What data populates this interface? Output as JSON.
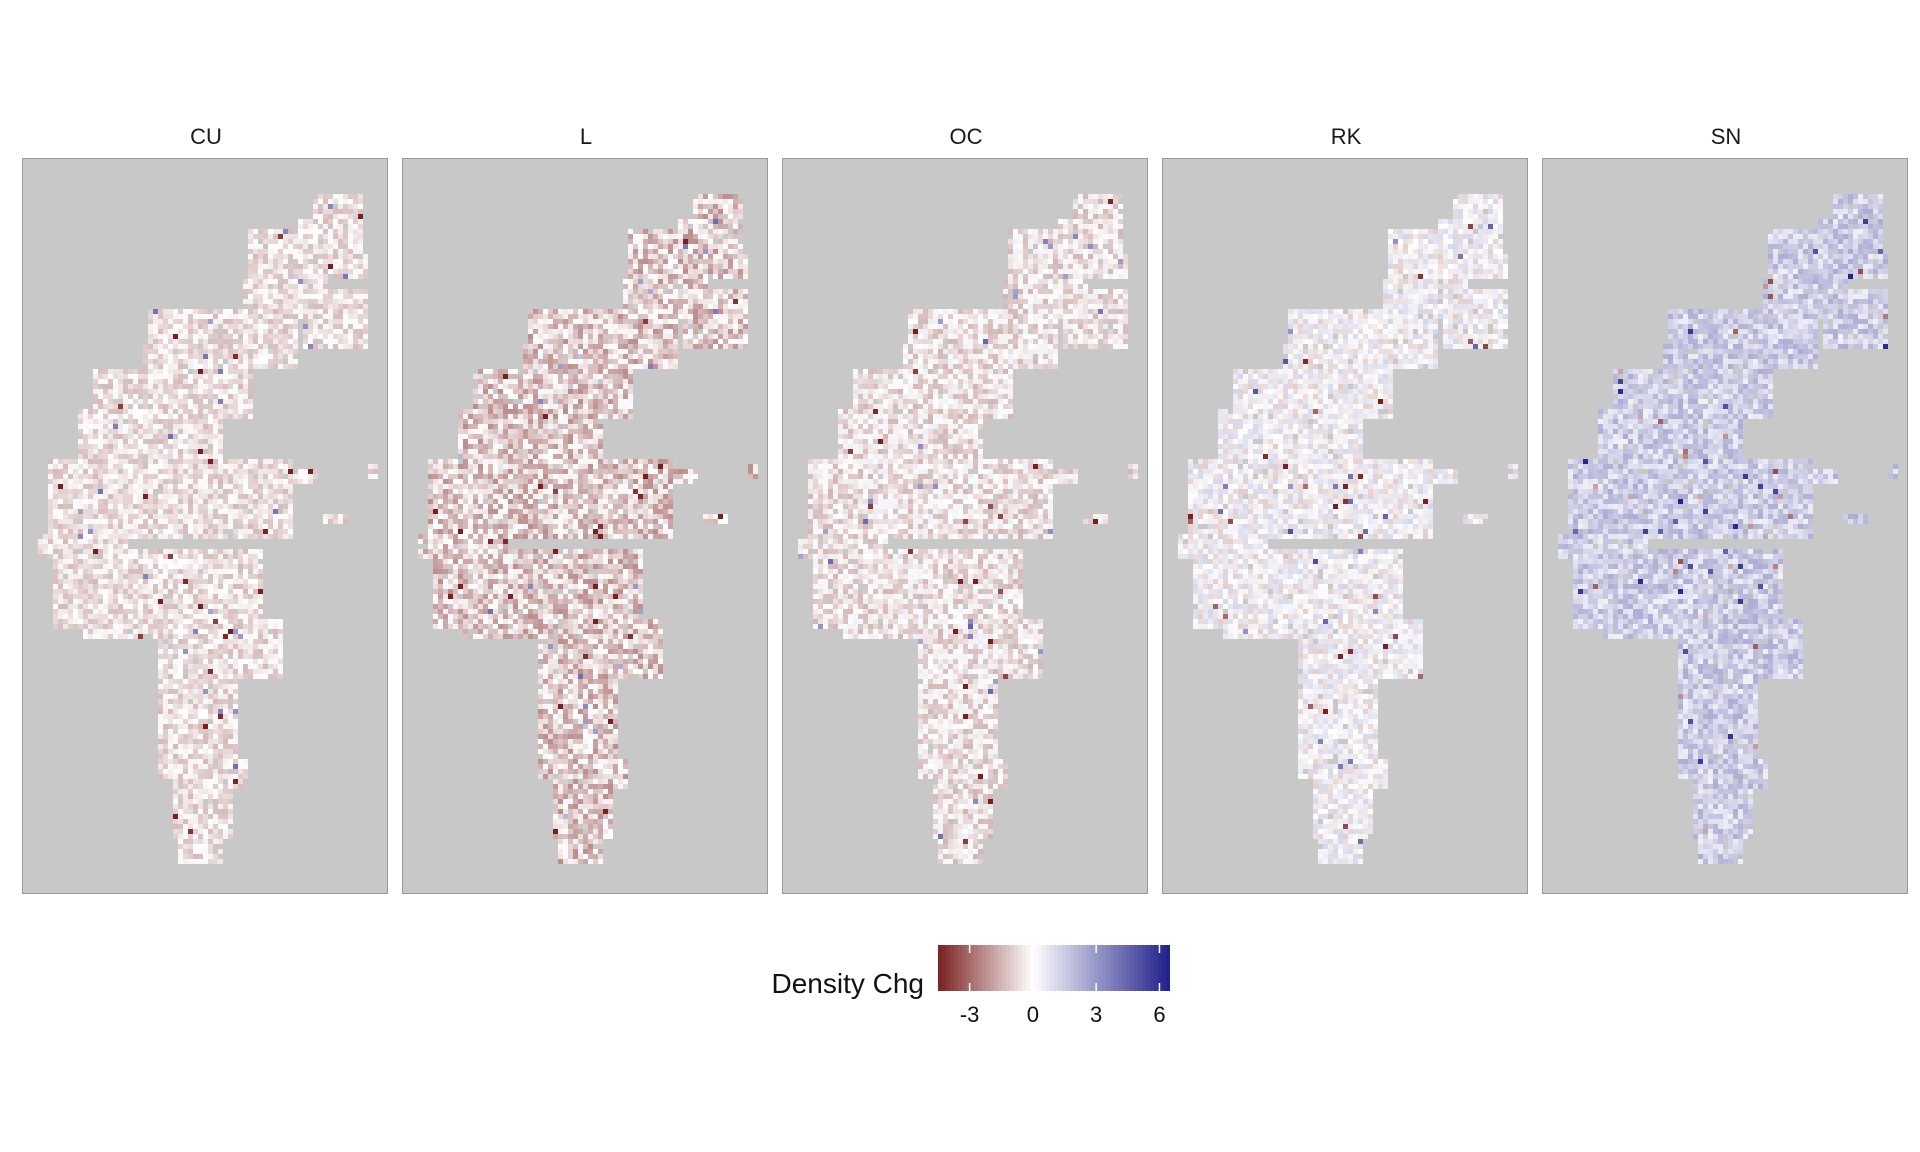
{
  "chart_data": {
    "type": "heatmap",
    "facets": [
      {
        "label": "CU",
        "mean_change": -0.6,
        "spread": 0.8
      },
      {
        "label": "L",
        "mean_change": -1.0,
        "spread": 1.3
      },
      {
        "label": "OC",
        "mean_change": -0.5,
        "spread": 1.0
      },
      {
        "label": "RK",
        "mean_change": 0.1,
        "spread": 1.1
      },
      {
        "label": "SN",
        "mean_change": 1.4,
        "spread": 1.0
      }
    ],
    "legend": {
      "title": "Density Chg",
      "range": [
        -4.5,
        6.5
      ],
      "ticks": [
        -3,
        0,
        3,
        6
      ],
      "tick_labels": [
        "-3",
        "0",
        "3",
        "6"
      ],
      "colors": {
        "low": "#7a1f1f",
        "mid": "#ffffff",
        "high": "#1f1f8a"
      }
    },
    "background_color": "#c8c8c8",
    "xlabel": "",
    "ylabel": ""
  }
}
